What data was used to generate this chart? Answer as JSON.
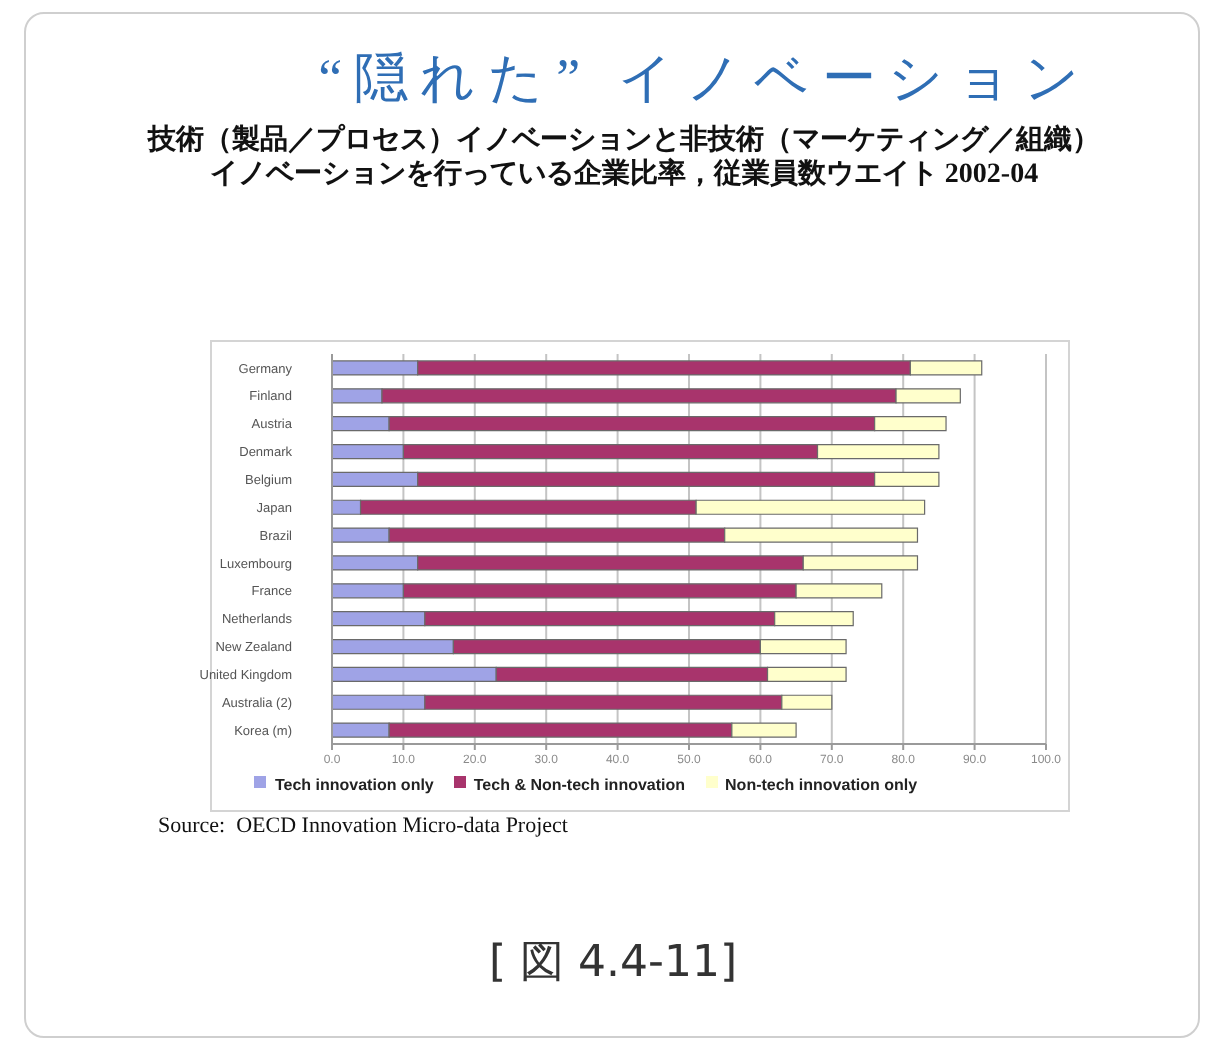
{
  "chart_data": {
    "type": "bar",
    "orientation": "horizontal",
    "stacked": true,
    "title": "“隠れた” イノベーション",
    "subtitle": "技術（製品／プロセス）イノベーションと非技術（マーケティング／組織）イノベーションを行っている企業比率，従業員数ウエイト 2002-04",
    "categories": [
      "Germany",
      "Finland",
      "Austria",
      "Denmark",
      "Belgium",
      "Japan",
      "Brazil",
      "Luxembourg",
      "France",
      "Netherlands",
      "New Zealand",
      "United Kingdom",
      "Australia (2)",
      "Korea (m)"
    ],
    "series": [
      {
        "name": "Tech innovation only",
        "color": "#9fa3e6",
        "values": [
          12,
          7,
          8,
          10,
          12,
          4,
          8,
          12,
          10,
          13,
          17,
          23,
          13,
          8
        ]
      },
      {
        "name": "Tech & Non-tech innovation",
        "color": "#a8346c",
        "values": [
          69,
          72,
          68,
          58,
          64,
          47,
          47,
          54,
          55,
          49,
          43,
          38,
          50,
          48
        ]
      },
      {
        "name": "Non-tech innovation only",
        "color": "#ffffcc",
        "values": [
          10,
          9,
          10,
          17,
          9,
          32,
          27,
          16,
          12,
          11,
          12,
          11,
          7,
          9
        ]
      }
    ],
    "xlim": [
      0,
      100
    ],
    "xticks": [
      {
        "value": 0,
        "label": "0.0"
      },
      {
        "value": 10,
        "label": "10.0"
      },
      {
        "value": 20,
        "label": "20.0"
      },
      {
        "value": 30,
        "label": "30.0"
      },
      {
        "value": 40,
        "label": "40.0"
      },
      {
        "value": 50,
        "label": "50.0"
      },
      {
        "value": 60,
        "label": "60.0"
      },
      {
        "value": 70,
        "label": "70.0"
      },
      {
        "value": 80,
        "label": "80.0"
      },
      {
        "value": 90,
        "label": "90.0"
      },
      {
        "value": 100,
        "label": "100.0"
      }
    ],
    "grid": "x",
    "legend": "bottom",
    "annotations": [
      "Source:  OECD Innovation Micro-data Project",
      "[ 図 4.4-11]"
    ]
  }
}
